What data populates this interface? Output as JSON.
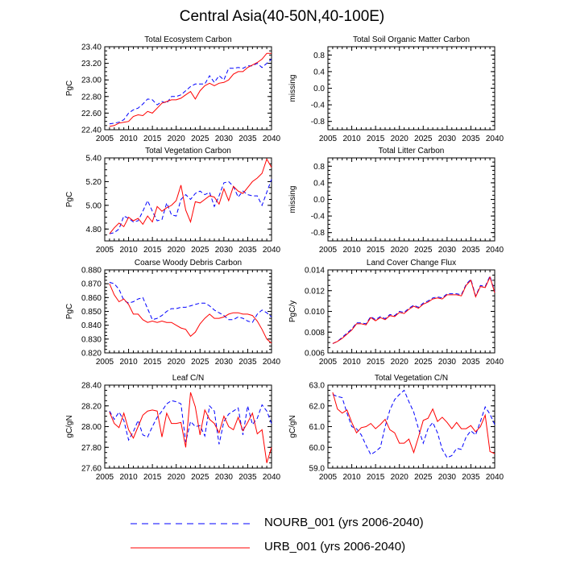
{
  "title": "Central Asia(40-50N,40-100E)",
  "legend": [
    {
      "label": "NOURB_001 (yrs 2006-2040)",
      "color": "#0000ff",
      "style": "dashed"
    },
    {
      "label": "URB_001 (yrs 2006-2040)",
      "color": "#ff0000",
      "style": "solid"
    }
  ],
  "chart_data": [
    {
      "type": "line",
      "title": "Total Ecosystem Carbon",
      "xlabel": "",
      "ylabel": "PgC",
      "xlim": [
        2005,
        2040
      ],
      "ylim": [
        22.4,
        23.4
      ],
      "xticks": [
        2005,
        2010,
        2015,
        2020,
        2025,
        2030,
        2035,
        2040
      ],
      "yticks": [
        22.4,
        22.6,
        22.8,
        23.0,
        23.2,
        23.4
      ],
      "ytick_decimals": 2,
      "x": [
        2006,
        2007,
        2008,
        2009,
        2010,
        2011,
        2012,
        2013,
        2014,
        2015,
        2016,
        2017,
        2018,
        2019,
        2020,
        2021,
        2022,
        2023,
        2024,
        2025,
        2026,
        2027,
        2028,
        2029,
        2030,
        2031,
        2032,
        2033,
        2034,
        2035,
        2036,
        2037,
        2038,
        2039,
        2040
      ],
      "series": [
        {
          "name": "NOURB_001",
          "values": [
            22.47,
            22.48,
            22.49,
            22.52,
            22.6,
            22.64,
            22.66,
            22.71,
            22.77,
            22.76,
            22.7,
            22.74,
            22.72,
            22.8,
            22.8,
            22.82,
            22.87,
            22.92,
            22.95,
            22.95,
            22.95,
            23.05,
            22.97,
            23.05,
            23.0,
            23.14,
            23.14,
            23.15,
            23.14,
            23.17,
            23.17,
            23.2,
            23.15,
            23.2,
            23.25
          ]
        },
        {
          "name": "URB_001",
          "values": [
            22.44,
            22.45,
            22.48,
            22.49,
            22.5,
            22.56,
            22.58,
            22.57,
            22.62,
            22.6,
            22.66,
            22.72,
            22.74,
            22.76,
            22.76,
            22.78,
            22.82,
            22.86,
            22.77,
            22.87,
            22.93,
            22.96,
            22.93,
            22.96,
            22.97,
            23.0,
            23.07,
            23.1,
            23.1,
            23.15,
            23.18,
            23.21,
            23.25,
            23.32,
            23.32
          ]
        }
      ]
    },
    {
      "type": "line",
      "title": "Total Soil Organic Matter Carbon",
      "xlabel": "",
      "ylabel": "missing",
      "xlim": [
        2005,
        2040
      ],
      "ylim": [
        -1.0,
        1.0
      ],
      "xticks": [
        2005,
        2010,
        2015,
        2020,
        2025,
        2030,
        2035,
        2040
      ],
      "yticks": [
        -0.8,
        -0.4,
        0.0,
        0.4,
        0.8
      ],
      "ytick_decimals": 1,
      "x": [],
      "series": []
    },
    {
      "type": "line",
      "title": "Total Vegetation Carbon",
      "xlabel": "",
      "ylabel": "PgC",
      "xlim": [
        2005,
        2040
      ],
      "ylim": [
        4.7,
        5.4
      ],
      "xticks": [
        2005,
        2010,
        2015,
        2020,
        2025,
        2030,
        2035,
        2040
      ],
      "yticks": [
        4.8,
        5.0,
        5.2,
        5.4
      ],
      "ytick_decimals": 2,
      "x": [
        2006,
        2007,
        2008,
        2009,
        2010,
        2011,
        2012,
        2013,
        2014,
        2015,
        2016,
        2017,
        2018,
        2019,
        2020,
        2021,
        2022,
        2023,
        2024,
        2025,
        2026,
        2027,
        2028,
        2029,
        2030,
        2031,
        2032,
        2033,
        2034,
        2035,
        2036,
        2037,
        2038,
        2039,
        2040
      ],
      "series": [
        {
          "name": "NOURB_001",
          "values": [
            4.76,
            4.77,
            4.8,
            4.91,
            4.89,
            4.86,
            4.87,
            4.95,
            5.04,
            4.95,
            4.87,
            4.88,
            5.02,
            4.92,
            4.91,
            5.05,
            5.09,
            5.05,
            5.1,
            5.12,
            5.09,
            5.11,
            4.99,
            5.08,
            5.19,
            5.2,
            5.16,
            5.07,
            5.12,
            5.09,
            5.08,
            5.08,
            5.0,
            5.11,
            5.22
          ]
        },
        {
          "name": "URB_001",
          "values": [
            4.76,
            4.81,
            4.85,
            4.82,
            4.9,
            4.87,
            4.89,
            4.84,
            4.91,
            4.86,
            4.99,
            4.95,
            4.98,
            5.0,
            5.04,
            5.17,
            4.96,
            4.86,
            5.03,
            5.02,
            5.05,
            5.08,
            5.07,
            5.01,
            5.14,
            5.04,
            5.16,
            5.12,
            5.1,
            5.15,
            5.2,
            5.23,
            5.27,
            5.39,
            5.32
          ]
        }
      ]
    },
    {
      "type": "line",
      "title": "Total Litter Carbon",
      "xlabel": "",
      "ylabel": "missing",
      "xlim": [
        2005,
        2040
      ],
      "ylim": [
        -1.0,
        1.0
      ],
      "xticks": [
        2005,
        2010,
        2015,
        2020,
        2025,
        2030,
        2035,
        2040
      ],
      "yticks": [
        -0.8,
        -0.4,
        0.0,
        0.4,
        0.8
      ],
      "ytick_decimals": 1,
      "x": [],
      "series": []
    },
    {
      "type": "line",
      "title": "Coarse Woody Debris Carbon",
      "xlabel": "",
      "ylabel": "PgC",
      "xlim": [
        2005,
        2040
      ],
      "ylim": [
        0.82,
        0.88
      ],
      "xticks": [
        2005,
        2010,
        2015,
        2020,
        2025,
        2030,
        2035,
        2040
      ],
      "yticks": [
        0.82,
        0.83,
        0.84,
        0.85,
        0.86,
        0.87,
        0.88
      ],
      "ytick_decimals": 3,
      "x": [
        2006,
        2007,
        2008,
        2009,
        2010,
        2011,
        2012,
        2013,
        2014,
        2015,
        2016,
        2017,
        2018,
        2019,
        2020,
        2021,
        2022,
        2023,
        2024,
        2025,
        2026,
        2027,
        2028,
        2029,
        2030,
        2031,
        2032,
        2033,
        2034,
        2035,
        2036,
        2037,
        2038,
        2039,
        2040
      ],
      "series": [
        {
          "name": "NOURB_001",
          "values": [
            0.871,
            0.87,
            0.866,
            0.858,
            0.856,
            0.857,
            0.859,
            0.86,
            0.852,
            0.844,
            0.845,
            0.847,
            0.85,
            0.852,
            0.852,
            0.853,
            0.853,
            0.854,
            0.855,
            0.856,
            0.856,
            0.854,
            0.851,
            0.849,
            0.847,
            0.844,
            0.844,
            0.846,
            0.845,
            0.843,
            0.842,
            0.848,
            0.851,
            0.849,
            0.846
          ]
        },
        {
          "name": "URB_001",
          "values": [
            0.87,
            0.862,
            0.857,
            0.859,
            0.855,
            0.848,
            0.848,
            0.844,
            0.842,
            0.843,
            0.842,
            0.843,
            0.842,
            0.842,
            0.84,
            0.838,
            0.837,
            0.832,
            0.835,
            0.841,
            0.845,
            0.848,
            0.845,
            0.845,
            0.846,
            0.848,
            0.849,
            0.849,
            0.848,
            0.848,
            0.847,
            0.843,
            0.837,
            0.83,
            0.827
          ]
        }
      ]
    },
    {
      "type": "line",
      "title": "Land Cover Change Flux",
      "xlabel": "",
      "ylabel": "PgC/y",
      "xlim": [
        2005,
        2040
      ],
      "ylim": [
        0.006,
        0.014
      ],
      "xticks": [
        2005,
        2010,
        2015,
        2020,
        2025,
        2030,
        2035,
        2040
      ],
      "yticks": [
        0.006,
        0.008,
        0.01,
        0.012,
        0.014
      ],
      "ytick_decimals": 3,
      "x": [
        2006,
        2007,
        2008,
        2009,
        2010,
        2011,
        2012,
        2013,
        2014,
        2015,
        2016,
        2017,
        2018,
        2019,
        2020,
        2021,
        2022,
        2023,
        2024,
        2025,
        2026,
        2027,
        2028,
        2029,
        2030,
        2031,
        2032,
        2033,
        2034,
        2035,
        2036,
        2037,
        2038,
        2039,
        2040
      ],
      "series": [
        {
          "name": "NOURB_001",
          "values": [
            0.0069,
            0.0071,
            0.0075,
            0.0079,
            0.0083,
            0.0089,
            0.0089,
            0.0088,
            0.0095,
            0.0092,
            0.0095,
            0.0093,
            0.0097,
            0.0096,
            0.01,
            0.0099,
            0.0103,
            0.0106,
            0.0104,
            0.0108,
            0.011,
            0.0113,
            0.0114,
            0.0113,
            0.0117,
            0.0117,
            0.0117,
            0.0116,
            0.0126,
            0.0131,
            0.0115,
            0.0125,
            0.0124,
            0.0134,
            0.0119
          ]
        },
        {
          "name": "URB_001",
          "values": [
            0.0069,
            0.0071,
            0.0074,
            0.0078,
            0.0082,
            0.0088,
            0.0088,
            0.0087,
            0.0094,
            0.0091,
            0.0094,
            0.0092,
            0.0096,
            0.0095,
            0.0099,
            0.0098,
            0.0102,
            0.0105,
            0.0103,
            0.0107,
            0.0109,
            0.0112,
            0.0113,
            0.0112,
            0.0116,
            0.0116,
            0.0116,
            0.0115,
            0.0125,
            0.013,
            0.0114,
            0.0124,
            0.0123,
            0.0133,
            0.0118
          ]
        }
      ]
    },
    {
      "type": "line",
      "title": "Leaf C/N",
      "xlabel": "",
      "ylabel": "gC/gN",
      "xlim": [
        2005,
        2040
      ],
      "ylim": [
        27.6,
        28.4
      ],
      "xticks": [
        2005,
        2010,
        2015,
        2020,
        2025,
        2030,
        2035,
        2040
      ],
      "yticks": [
        27.6,
        27.8,
        28.0,
        28.2,
        28.4
      ],
      "ytick_decimals": 2,
      "x": [
        2006,
        2007,
        2008,
        2009,
        2010,
        2011,
        2012,
        2013,
        2014,
        2015,
        2016,
        2017,
        2018,
        2019,
        2020,
        2021,
        2022,
        2023,
        2024,
        2025,
        2026,
        2027,
        2028,
        2029,
        2030,
        2031,
        2032,
        2033,
        2034,
        2035,
        2036,
        2037,
        2038,
        2039,
        2040
      ],
      "series": [
        {
          "name": "NOURB_001",
          "values": [
            28.15,
            28.07,
            28.14,
            28.06,
            27.87,
            27.95,
            28.06,
            27.92,
            27.9,
            28.0,
            28.09,
            28.15,
            28.22,
            28.25,
            28.24,
            28.22,
            27.85,
            28.05,
            28.0,
            28.01,
            27.91,
            28.2,
            28.15,
            27.83,
            28.05,
            28.12,
            28.15,
            28.18,
            27.92,
            28.2,
            28.02,
            28.08,
            28.21,
            28.15,
            28.03
          ]
        },
        {
          "name": "URB_001",
          "values": [
            28.14,
            28.03,
            27.99,
            28.13,
            27.97,
            27.89,
            28.0,
            28.11,
            28.15,
            28.16,
            28.15,
            27.9,
            28.13,
            28.03,
            28.03,
            28.04,
            27.8,
            28.33,
            28.19,
            27.92,
            28.16,
            28.07,
            28.03,
            27.94,
            28.1,
            28.0,
            27.97,
            28.09,
            27.96,
            28.04,
            28.13,
            27.93,
            27.97,
            27.65,
            27.8
          ]
        }
      ]
    },
    {
      "type": "line",
      "title": "Total Vegetation C/N",
      "xlabel": "",
      "ylabel": "gC/gN",
      "xlim": [
        2005,
        2040
      ],
      "ylim": [
        59.0,
        63.0
      ],
      "xticks": [
        2005,
        2010,
        2015,
        2020,
        2025,
        2030,
        2035,
        2040
      ],
      "yticks": [
        59.0,
        60.0,
        61.0,
        62.0,
        63.0
      ],
      "ytick_decimals": 1,
      "x": [
        2006,
        2007,
        2008,
        2009,
        2010,
        2011,
        2012,
        2013,
        2014,
        2015,
        2016,
        2017,
        2018,
        2019,
        2020,
        2021,
        2022,
        2023,
        2024,
        2025,
        2026,
        2027,
        2028,
        2029,
        2030,
        2031,
        2032,
        2033,
        2034,
        2035,
        2036,
        2037,
        2038,
        2039,
        2040
      ],
      "series": [
        {
          "name": "NOURB_001",
          "values": [
            62.55,
            62.45,
            62.4,
            61.65,
            61.0,
            60.9,
            60.6,
            60.1,
            59.65,
            59.8,
            60.0,
            61.0,
            61.8,
            62.3,
            62.55,
            62.75,
            62.2,
            61.7,
            60.9,
            60.2,
            60.9,
            61.2,
            60.7,
            59.9,
            59.5,
            59.6,
            59.95,
            59.9,
            60.5,
            60.8,
            60.6,
            61.25,
            61.95,
            61.6,
            61.1
          ]
        },
        {
          "name": "URB_001",
          "values": [
            62.65,
            61.85,
            61.65,
            61.8,
            61.2,
            60.7,
            60.95,
            61.0,
            61.15,
            60.9,
            61.1,
            61.35,
            60.85,
            60.7,
            60.2,
            60.2,
            60.4,
            59.75,
            60.5,
            61.3,
            61.4,
            61.85,
            61.25,
            61.45,
            61.2,
            60.9,
            61.2,
            60.9,
            60.9,
            61.05,
            60.75,
            61.0,
            61.55,
            59.8,
            59.7
          ]
        }
      ]
    }
  ]
}
